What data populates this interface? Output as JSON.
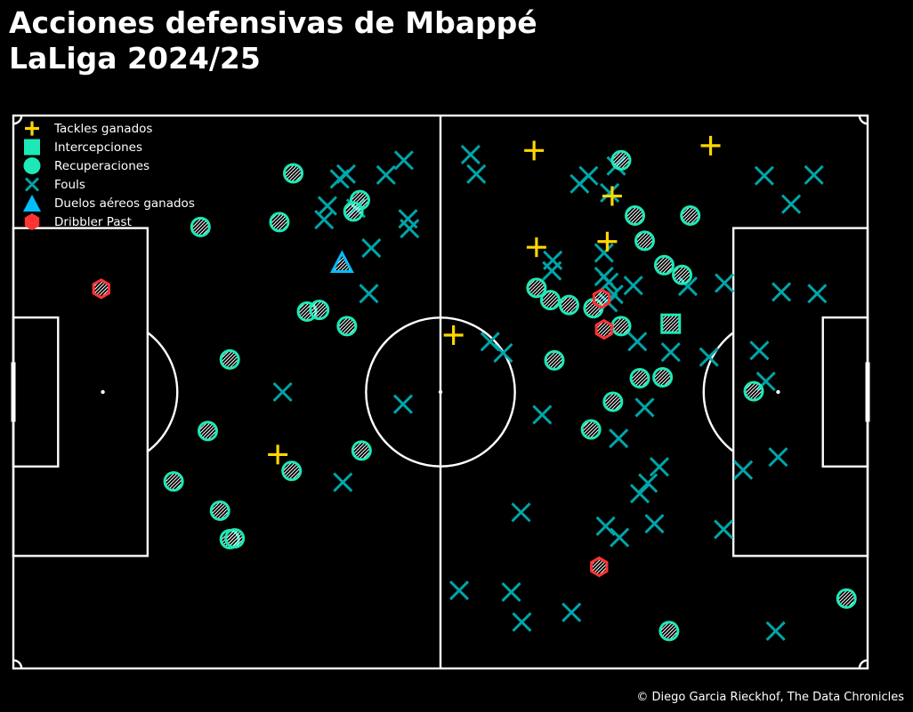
{
  "title": {
    "line1": "Acciones defensivas de Mbappé",
    "line2": "LaLiga 2024/25"
  },
  "credit": "© Diego Garcia Rieckhof, The Data Chronicles",
  "colors": {
    "background": "#000000",
    "pitch_lines": "#ffffff",
    "tackles": "#ffd700",
    "interceptions": "#1de9b6",
    "recoveries": "#1de9b6",
    "fouls": "#00a5a8",
    "aerials": "#00bfff",
    "dribbled_past": "#ff3333"
  },
  "chart_data": {
    "type": "scatter",
    "x_range": [
      0,
      105
    ],
    "y_range": [
      0,
      68
    ],
    "legend_position": "top-left",
    "legend": [
      {
        "key": "tackles",
        "label": "Tackles ganados",
        "marker": "plus"
      },
      {
        "key": "interceptions",
        "label": "Intercepciones",
        "marker": "square"
      },
      {
        "key": "recoveries",
        "label": "Recuperaciones",
        "marker": "circle"
      },
      {
        "key": "fouls",
        "label": "Fouls",
        "marker": "x"
      },
      {
        "key": "aerials",
        "label": "Duelos aéreos ganados",
        "marker": "triangle"
      },
      {
        "key": "dribbled_past",
        "label": "Dribbler Past",
        "marker": "hexagon"
      }
    ],
    "series": {
      "tackles": [
        [
          64.0,
          63.7
        ],
        [
          85.7,
          64.3
        ],
        [
          73.6,
          58.1
        ],
        [
          73.0,
          52.5
        ],
        [
          64.3,
          51.8
        ],
        [
          54.1,
          41.0
        ],
        [
          32.5,
          26.3
        ]
      ],
      "interceptions": [
        [
          80.8,
          42.4
        ]
      ],
      "recoveries": [
        [
          34.4,
          60.9
        ],
        [
          74.7,
          62.5
        ],
        [
          42.6,
          57.6
        ],
        [
          32.7,
          54.9
        ],
        [
          23.0,
          54.3
        ],
        [
          41.8,
          56.2
        ],
        [
          76.4,
          55.7
        ],
        [
          83.2,
          55.7
        ],
        [
          77.6,
          52.6
        ],
        [
          80.0,
          49.6
        ],
        [
          82.2,
          48.4
        ],
        [
          66.0,
          45.3
        ],
        [
          64.3,
          46.8
        ],
        [
          68.3,
          44.7
        ],
        [
          71.3,
          44.3
        ],
        [
          36.1,
          43.9
        ],
        [
          37.6,
          44.1
        ],
        [
          74.7,
          42.1
        ],
        [
          41.0,
          42.1
        ],
        [
          26.6,
          38.0
        ],
        [
          66.5,
          37.9
        ],
        [
          77.0,
          35.7
        ],
        [
          79.8,
          35.8
        ],
        [
          91.0,
          34.1
        ],
        [
          73.7,
          32.8
        ],
        [
          23.9,
          29.2
        ],
        [
          71.0,
          29.4
        ],
        [
          42.8,
          26.8
        ],
        [
          34.2,
          24.3
        ],
        [
          19.7,
          23.0
        ],
        [
          25.4,
          19.4
        ],
        [
          26.6,
          15.9
        ],
        [
          27.2,
          16.0
        ],
        [
          80.6,
          4.6
        ],
        [
          102.4,
          8.6
        ]
      ],
      "fouls": [
        [
          48.0,
          62.5
        ],
        [
          56.2,
          63.2
        ],
        [
          56.9,
          60.8
        ],
        [
          40.1,
          60.2
        ],
        [
          40.9,
          60.8
        ],
        [
          45.8,
          60.7
        ],
        [
          70.7,
          60.6
        ],
        [
          69.6,
          59.6
        ],
        [
          74.1,
          61.8
        ],
        [
          73.3,
          58.5
        ],
        [
          92.3,
          60.6
        ],
        [
          98.4,
          60.7
        ],
        [
          38.6,
          56.9
        ],
        [
          42.1,
          56.6
        ],
        [
          38.2,
          55.2
        ],
        [
          48.5,
          55.3
        ],
        [
          48.7,
          54.1
        ],
        [
          95.6,
          57.1
        ],
        [
          72.6,
          51.1
        ],
        [
          66.3,
          50.2
        ],
        [
          66.2,
          48.9
        ],
        [
          72.6,
          48.2
        ],
        [
          73.2,
          47.5
        ],
        [
          76.2,
          47.1
        ],
        [
          82.9,
          47.0
        ],
        [
          87.4,
          47.4
        ],
        [
          44.0,
          51.7
        ],
        [
          73.8,
          46.0
        ],
        [
          94.4,
          46.3
        ],
        [
          98.8,
          46.1
        ],
        [
          73.1,
          45.0
        ],
        [
          43.7,
          46.1
        ],
        [
          58.6,
          40.2
        ],
        [
          60.2,
          38.8
        ],
        [
          76.7,
          40.2
        ],
        [
          80.8,
          38.9
        ],
        [
          85.5,
          38.3
        ],
        [
          91.7,
          39.1
        ],
        [
          33.1,
          34.0
        ],
        [
          47.9,
          32.5
        ],
        [
          92.5,
          35.3
        ],
        [
          77.6,
          32.1
        ],
        [
          65.0,
          31.2
        ],
        [
          74.4,
          28.3
        ],
        [
          94.0,
          26.0
        ],
        [
          79.4,
          24.8
        ],
        [
          78.0,
          22.8
        ],
        [
          89.7,
          24.4
        ],
        [
          77.0,
          21.5
        ],
        [
          40.5,
          22.9
        ],
        [
          62.4,
          19.2
        ],
        [
          72.8,
          17.5
        ],
        [
          78.8,
          17.8
        ],
        [
          74.5,
          16.1
        ],
        [
          87.3,
          17.1
        ],
        [
          54.8,
          9.6
        ],
        [
          61.2,
          9.4
        ],
        [
          62.5,
          5.7
        ],
        [
          68.6,
          6.9
        ],
        [
          93.7,
          4.6
        ]
      ],
      "aerials": [
        [
          40.4,
          49.9
        ]
      ],
      "dribbled_past": [
        [
          10.8,
          46.7
        ],
        [
          72.3,
          45.5
        ],
        [
          72.6,
          41.7
        ],
        [
          72.0,
          12.5
        ]
      ]
    }
  }
}
